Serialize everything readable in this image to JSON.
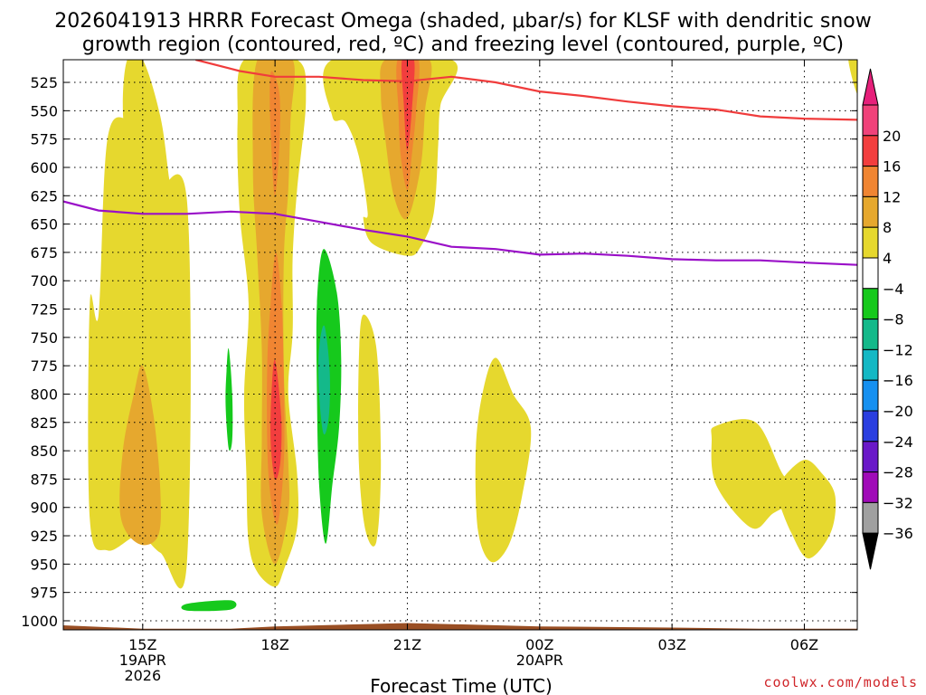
{
  "chart_data": {
    "type": "heatmap",
    "title_line1": "2026041913 HRRR Forecast Omega (shaded, μbar/s) for KLSF with dendritic snow",
    "title_line2": "growth region (contoured, red, ºC) and freezing level (contoured, purple, ºC)",
    "xlabel": "Forecast Time (UTC)",
    "ylabel": "",
    "credit": "coolwx.com/models",
    "x_range_hours": [
      13.2,
      31.2
    ],
    "x_ticks": [
      {
        "h": 15,
        "label": "15Z",
        "sub1": "19APR",
        "sub2": "2026"
      },
      {
        "h": 18,
        "label": "18Z",
        "sub1": "",
        "sub2": ""
      },
      {
        "h": 21,
        "label": "21Z",
        "sub1": "",
        "sub2": ""
      },
      {
        "h": 24,
        "label": "00Z",
        "sub1": "20APR",
        "sub2": ""
      },
      {
        "h": 27,
        "label": "03Z",
        "sub1": "",
        "sub2": ""
      },
      {
        "h": 30,
        "label": "06Z",
        "sub1": "",
        "sub2": ""
      }
    ],
    "y_range_hpa": [
      505,
      1008
    ],
    "y_ticks": [
      "525",
      "550",
      "575",
      "600",
      "625",
      "650",
      "675",
      "700",
      "725",
      "750",
      "775",
      "800",
      "825",
      "850",
      "875",
      "900",
      "925",
      "950",
      "975",
      "1000"
    ],
    "colorbar": {
      "labels": [
        "20",
        "16",
        "12",
        "8",
        "4",
        "−4",
        "−8",
        "−12",
        "−16",
        "−20",
        "−24",
        "−28",
        "−32",
        "−36"
      ],
      "colors": [
        "#f0427a",
        "#f23e3e",
        "#f08532",
        "#e6a82e",
        "#e6d82e",
        "#ffffff",
        "#16c91c",
        "#14b98a",
        "#14b8c4",
        "#1690f0",
        "#2a3ee0",
        "#6a18c8",
        "#a00ab8",
        "#a0a0a0"
      ],
      "top_arrow_color": "#e6207a",
      "bottom_arrow_color": "#000000"
    },
    "series": [
      {
        "name": "Dendritic snow growth region (red, ºC)",
        "color": "#f03c3c",
        "points": [
          [
            16.2,
            505
          ],
          [
            17.2,
            515
          ],
          [
            18.0,
            520
          ],
          [
            19.0,
            520
          ],
          [
            20.0,
            523
          ],
          [
            21.0,
            524
          ],
          [
            22.0,
            520
          ],
          [
            23.0,
            525
          ],
          [
            24.0,
            533
          ],
          [
            25.0,
            537
          ],
          [
            26.0,
            542
          ],
          [
            27.0,
            546
          ],
          [
            28.0,
            549
          ],
          [
            29.0,
            555
          ],
          [
            30.0,
            557
          ],
          [
            31.2,
            558
          ]
        ]
      },
      {
        "name": "Freezing level (purple, ºC)",
        "color": "#9a10c8",
        "points": [
          [
            13.2,
            630
          ],
          [
            14.0,
            638
          ],
          [
            15.0,
            641
          ],
          [
            16.0,
            641
          ],
          [
            17.0,
            639
          ],
          [
            18.0,
            641
          ],
          [
            19.0,
            648
          ],
          [
            20.0,
            655
          ],
          [
            21.0,
            661
          ],
          [
            22.0,
            670
          ],
          [
            23.0,
            672
          ],
          [
            24.0,
            677
          ],
          [
            25.0,
            676
          ],
          [
            26.0,
            678
          ],
          [
            27.0,
            681
          ],
          [
            28.0,
            682
          ],
          [
            29.0,
            682
          ],
          [
            30.0,
            684
          ],
          [
            31.2,
            686
          ]
        ]
      }
    ],
    "omega_regions": [
      {
        "level": 4,
        "color": "#e6d82e",
        "pts": [
          [
            14.2,
            575
          ],
          [
            14.7,
            558
          ],
          [
            15.2,
            575
          ],
          [
            15.2,
            628
          ],
          [
            16.0,
            628
          ],
          [
            16.0,
            950
          ],
          [
            15.4,
            940
          ],
          [
            14.9,
            925
          ],
          [
            14.2,
            938
          ],
          [
            13.8,
            910
          ],
          [
            13.8,
            720
          ],
          [
            14.0,
            730
          ]
        ]
      },
      {
        "level": 4,
        "color": "#e6d82e",
        "pts": [
          [
            14.65,
            505
          ],
          [
            15.0,
            505
          ],
          [
            15.4,
            555
          ],
          [
            15.6,
            610
          ],
          [
            15.7,
            635
          ],
          [
            15.0,
            638
          ],
          [
            14.7,
            600
          ],
          [
            14.55,
            550
          ]
        ]
      },
      {
        "level": 8,
        "color": "#e6a82e",
        "pts": [
          [
            15.0,
            775
          ],
          [
            15.25,
            820
          ],
          [
            15.4,
            885
          ],
          [
            15.35,
            925
          ],
          [
            14.9,
            932
          ],
          [
            14.5,
            908
          ],
          [
            14.55,
            850
          ],
          [
            14.8,
            800
          ]
        ]
      },
      {
        "level": 4,
        "color": "#e6d82e",
        "pts": [
          [
            17.3,
            505
          ],
          [
            18.5,
            505
          ],
          [
            18.7,
            540
          ],
          [
            18.5,
            620
          ],
          [
            18.4,
            680
          ],
          [
            18.4,
            745
          ],
          [
            18.3,
            800
          ],
          [
            18.5,
            870
          ],
          [
            18.5,
            918
          ],
          [
            18.2,
            955
          ],
          [
            18.0,
            970
          ],
          [
            17.6,
            957
          ],
          [
            17.4,
            930
          ],
          [
            17.35,
            870
          ],
          [
            17.3,
            800
          ],
          [
            17.4,
            720
          ],
          [
            17.2,
            640
          ],
          [
            17.15,
            560
          ]
        ]
      },
      {
        "level": 8,
        "color": "#e6a82e",
        "pts": [
          [
            17.6,
            505
          ],
          [
            18.4,
            505
          ],
          [
            18.35,
            560
          ],
          [
            18.3,
            620
          ],
          [
            18.2,
            680
          ],
          [
            18.2,
            780
          ],
          [
            18.3,
            860
          ],
          [
            18.3,
            905
          ],
          [
            18.0,
            950
          ],
          [
            17.7,
            905
          ],
          [
            17.7,
            840
          ],
          [
            17.7,
            760
          ],
          [
            17.6,
            680
          ],
          [
            17.5,
            600
          ]
        ]
      },
      {
        "level": 12,
        "color": "#f08532",
        "pts": [
          [
            17.92,
            515
          ],
          [
            18.1,
            535
          ],
          [
            18.1,
            580
          ],
          [
            18.0,
            625
          ],
          [
            17.92,
            585
          ],
          [
            17.88,
            540
          ]
        ]
      },
      {
        "level": 12,
        "color": "#f08532",
        "pts": [
          [
            18.02,
            675
          ],
          [
            18.15,
            720
          ],
          [
            18.2,
            790
          ],
          [
            18.2,
            860
          ],
          [
            18.05,
            915
          ],
          [
            17.85,
            870
          ],
          [
            17.82,
            780
          ],
          [
            17.9,
            720
          ]
        ]
      },
      {
        "level": 16,
        "color": "#f23e3e",
        "pts": [
          [
            18.0,
            770
          ],
          [
            18.14,
            820
          ],
          [
            18.12,
            860
          ],
          [
            18.0,
            875
          ],
          [
            17.9,
            842
          ],
          [
            17.92,
            800
          ]
        ]
      },
      {
        "level": 4,
        "color": "#e6d82e",
        "pts": [
          [
            19.3,
            505
          ],
          [
            22.0,
            505
          ],
          [
            21.75,
            545
          ],
          [
            21.7,
            580
          ],
          [
            21.6,
            640
          ],
          [
            21.3,
            670
          ],
          [
            21.0,
            678
          ],
          [
            20.2,
            667
          ],
          [
            20.0,
            645
          ],
          [
            20.1,
            640
          ],
          [
            19.9,
            590
          ],
          [
            19.6,
            560
          ],
          [
            19.3,
            555
          ]
        ]
      },
      {
        "level": 8,
        "color": "#e6a82e",
        "pts": [
          [
            20.5,
            505
          ],
          [
            21.5,
            505
          ],
          [
            21.4,
            550
          ],
          [
            21.3,
            600
          ],
          [
            21.0,
            645
          ],
          [
            20.7,
            626
          ],
          [
            20.5,
            575
          ],
          [
            20.4,
            535
          ]
        ]
      },
      {
        "level": 12,
        "color": "#f08532",
        "pts": [
          [
            20.78,
            505
          ],
          [
            21.25,
            505
          ],
          [
            21.2,
            550
          ],
          [
            21.1,
            590
          ],
          [
            21.0,
            620
          ],
          [
            20.85,
            590
          ],
          [
            20.8,
            550
          ]
        ]
      },
      {
        "level": 16,
        "color": "#f23e3e",
        "pts": [
          [
            20.88,
            505
          ],
          [
            21.15,
            505
          ],
          [
            21.12,
            540
          ],
          [
            21.0,
            585
          ],
          [
            20.92,
            545
          ]
        ]
      },
      {
        "level": -4,
        "color": "#16c91c",
        "pts": [
          [
            19.1,
            672
          ],
          [
            19.4,
            710
          ],
          [
            19.5,
            770
          ],
          [
            19.45,
            830
          ],
          [
            19.3,
            880
          ],
          [
            19.15,
            932
          ],
          [
            19.0,
            880
          ],
          [
            18.95,
            800
          ],
          [
            18.95,
            720
          ]
        ]
      },
      {
        "level": -8,
        "color": "#14b98a",
        "pts": [
          [
            19.12,
            740
          ],
          [
            19.24,
            780
          ],
          [
            19.22,
            820
          ],
          [
            19.1,
            835
          ],
          [
            19.0,
            800
          ],
          [
            19.0,
            760
          ]
        ]
      },
      {
        "level": -4,
        "color": "#16c91c",
        "pts": [
          [
            16.95,
            760
          ],
          [
            17.03,
            800
          ],
          [
            17.03,
            840
          ],
          [
            16.95,
            848
          ],
          [
            16.88,
            810
          ],
          [
            16.9,
            780
          ]
        ]
      },
      {
        "level": -4,
        "color": "#16c91c",
        "pts": [
          [
            16.0,
            985
          ],
          [
            17.0,
            982
          ],
          [
            17.0,
            990
          ],
          [
            16.0,
            991
          ]
        ]
      },
      {
        "level": 4,
        "color": "#e6d82e",
        "pts": [
          [
            20.0,
            730
          ],
          [
            20.3,
            760
          ],
          [
            20.4,
            860
          ],
          [
            20.3,
            930
          ],
          [
            20.05,
            920
          ],
          [
            19.9,
            860
          ],
          [
            19.9,
            770
          ]
        ]
      },
      {
        "level": 4,
        "color": "#e6d82e",
        "pts": [
          [
            23.0,
            768
          ],
          [
            23.4,
            800
          ],
          [
            23.8,
            830
          ],
          [
            23.6,
            890
          ],
          [
            23.3,
            933
          ],
          [
            22.9,
            948
          ],
          [
            22.6,
            920
          ],
          [
            22.55,
            850
          ],
          [
            22.7,
            800
          ]
        ]
      },
      {
        "level": 4,
        "color": "#e6d82e",
        "pts": [
          [
            28.0,
            828
          ],
          [
            28.9,
            825
          ],
          [
            29.5,
            870
          ],
          [
            29.9,
            890
          ],
          [
            29.3,
            905
          ],
          [
            28.8,
            918
          ],
          [
            28.0,
            880
          ],
          [
            27.9,
            840
          ]
        ]
      },
      {
        "level": 4,
        "color": "#e6d82e",
        "pts": [
          [
            30.0,
            858
          ],
          [
            30.4,
            870
          ],
          [
            30.7,
            890
          ],
          [
            30.6,
            922
          ],
          [
            30.1,
            945
          ],
          [
            29.7,
            922
          ],
          [
            29.4,
            890
          ],
          [
            29.5,
            875
          ]
        ]
      },
      {
        "level": 4,
        "color": "#e6d82e",
        "pts": [
          [
            31.0,
            505
          ],
          [
            31.2,
            505
          ],
          [
            31.2,
            535
          ]
        ]
      }
    ],
    "terrain": {
      "color": "#9a4f24",
      "top_hpa": [
        [
          13.2,
          1004
        ],
        [
          15.0,
          1007
        ],
        [
          17.0,
          1007
        ],
        [
          18.0,
          1005
        ],
        [
          19.0,
          1004
        ],
        [
          21.0,
          1002
        ],
        [
          22.0,
          1003
        ],
        [
          24.0,
          1005
        ],
        [
          27.0,
          1006
        ],
        [
          29.0,
          1007
        ],
        [
          31.2,
          1007
        ]
      ]
    }
  }
}
